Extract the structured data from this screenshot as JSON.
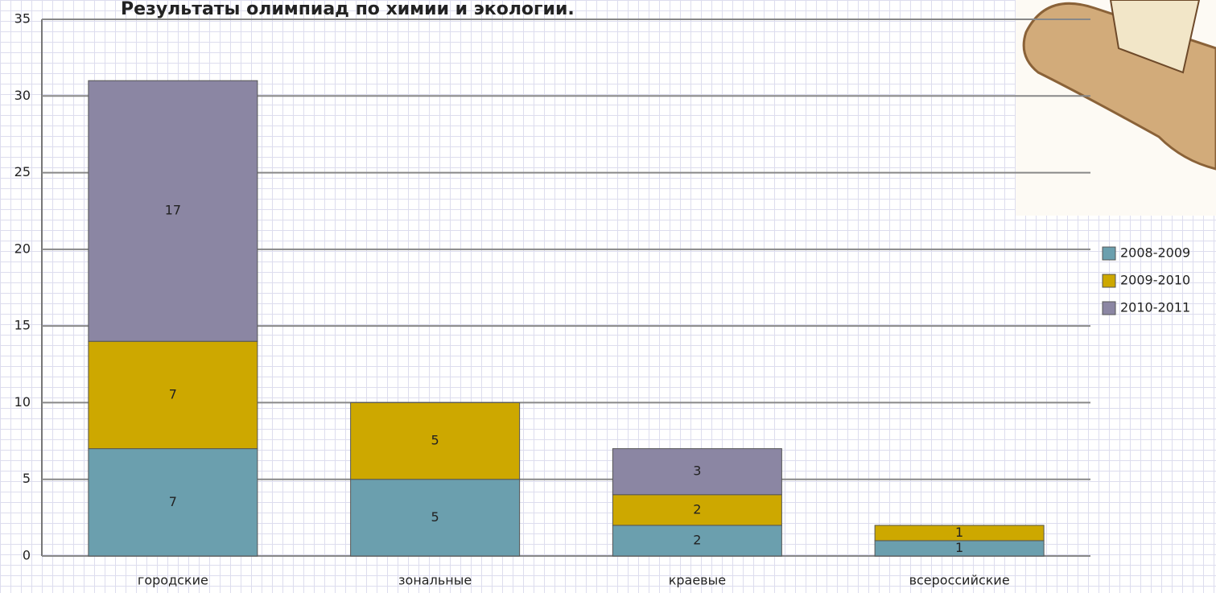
{
  "chart_data": {
    "type": "stacked_bar",
    "title": "Результаты олимпиад по химии и экологии.",
    "categories": [
      "городские",
      "зональные",
      "краевые",
      "всероссийские"
    ],
    "series": [
      {
        "name": "2008-2009",
        "color": "#6b9fae",
        "values": [
          7,
          5,
          2,
          1
        ]
      },
      {
        "name": "2009-2010",
        "color": "#cda800",
        "values": [
          7,
          5,
          2,
          1
        ]
      },
      {
        "name": "2010-2011",
        "color": "#8b86a3",
        "values": [
          17,
          null,
          3,
          null
        ]
      }
    ],
    "ylim": [
      0,
      35
    ],
    "yticks": [
      0,
      5,
      10,
      15,
      20,
      25,
      30,
      35
    ],
    "grid": true,
    "legend": "right"
  }
}
